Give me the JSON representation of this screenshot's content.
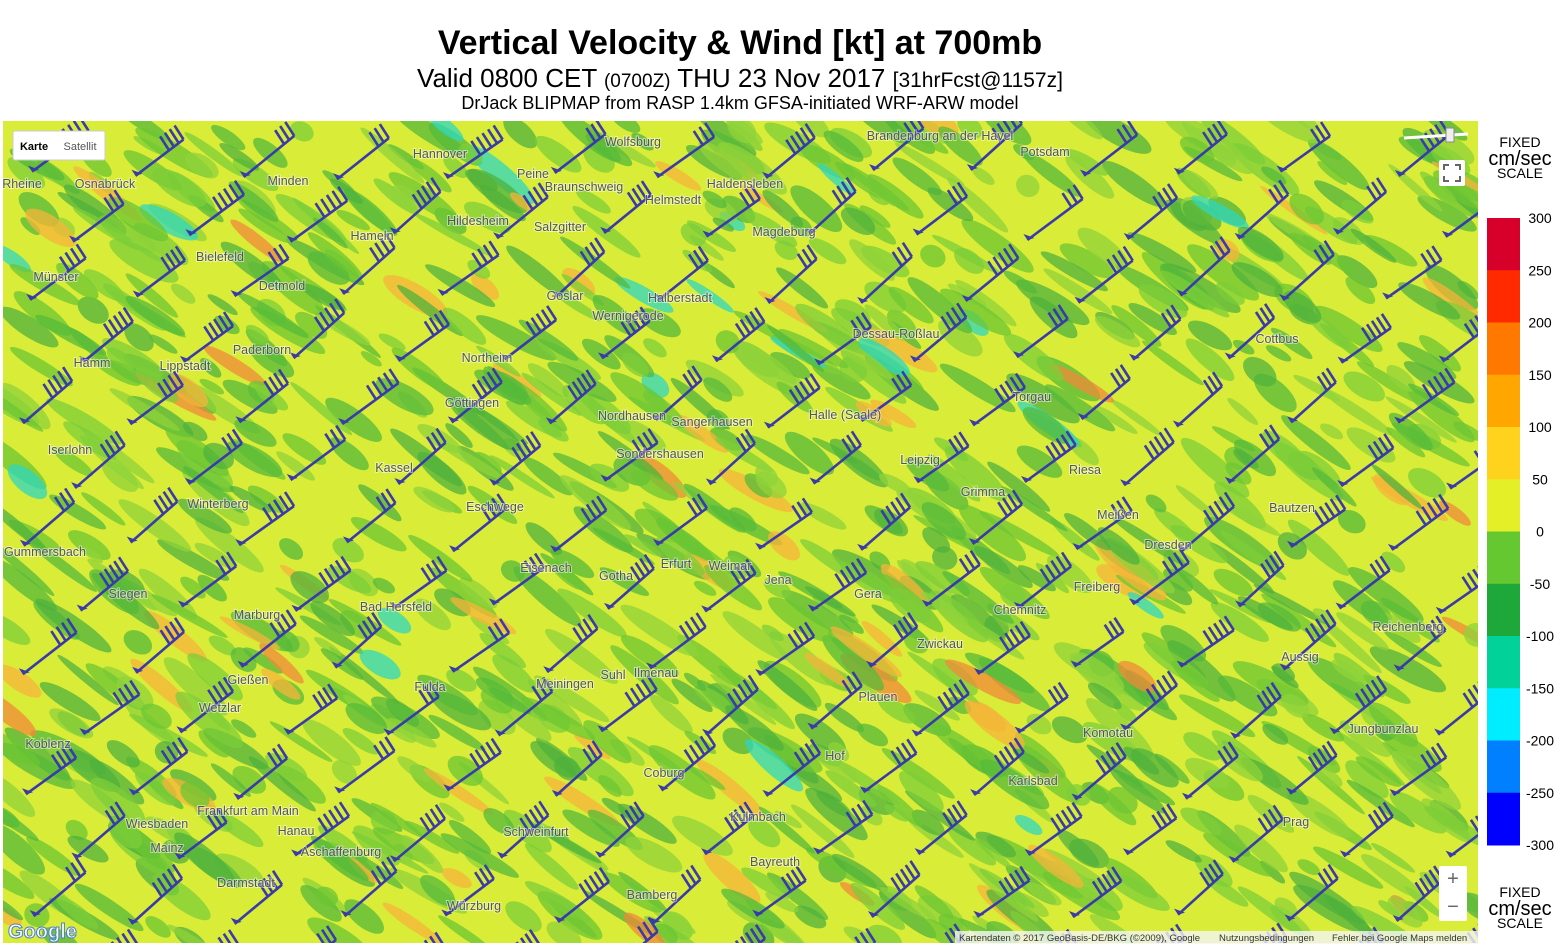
{
  "header": {
    "title": "Vertical Velocity & Wind [kt] at 700mb",
    "valid": [
      "Valid 0800 CET",
      "(0700Z)",
      "THU 23 Nov 2017",
      "[31hrFcst@1157z]"
    ],
    "subtitle": "DrJack BLIPMAP from RASP 1.4km GFSA-initiated WRF-ARW model"
  },
  "map": {
    "controls": [
      "Karte",
      "Satellit"
    ],
    "zoom": [
      "+",
      "−"
    ],
    "logo": "Google",
    "attribution": [
      "Kartendaten © 2017 GeoBasis-DE/BKG (©2009), Google",
      "Nutzungsbedingungen",
      "Fehler bei Google Maps melden"
    ],
    "cities": [
      "Hannover",
      "Wolfsburg",
      "Brandenburg an der Havel",
      "Potsdam",
      "Osnabrück",
      "Minden",
      "Peine",
      "Braunschweig",
      "Haldensleben",
      "Helmstedt",
      "Rheine",
      "Hildesheim",
      "Salzgitter",
      "Magdeburg",
      "Bielefeld",
      "Hameln",
      "Münster",
      "Detmold",
      "Goslar",
      "Halberstadt",
      "Wernigerode",
      "Paderborn",
      "Dessau-Roßlau",
      "Cottbus",
      "Hamm",
      "Lippstadt",
      "Northeim",
      "Göttingen",
      "Nordhausen",
      "Sangerhausen",
      "Halle (Saale)",
      "Leipzig",
      "Torgau",
      "Iserlohn",
      "Kassel",
      "Sondershausen",
      "Riesa",
      "Winterberg",
      "Eschwege",
      "Grimma",
      "Meißen",
      "Bautzen",
      "Gummersbach",
      "Dresden",
      "Eisenach",
      "Gotha",
      "Erfurt",
      "Weimar",
      "Jena",
      "Gera",
      "Siegen",
      "Marburg",
      "Bad Hersfeld",
      "Chemnitz",
      "Freiberg",
      "Reichenberg",
      "Zwickau",
      "Aussig",
      "Gießen",
      "Fulda",
      "Meiningen",
      "Suhl",
      "Ilmenau",
      "Plauen",
      "Komotau",
      "Koblenz",
      "Wetzlar",
      "Hof",
      "Coburg",
      "Karlsbad",
      "Jungbunzlau",
      "Frankfurt am Main",
      "Wiesbaden",
      "Mainz",
      "Hanau",
      "Prag",
      "Schweinfurt",
      "Kulmbach",
      "Bayreuth",
      "Darmstadt",
      "Bamberg",
      "Würzburg",
      "Aschaffenburg"
    ]
  },
  "scale": {
    "top": [
      "FIXED",
      "cm/sec",
      "SCALE"
    ],
    "ticks": [
      300,
      250,
      200,
      150,
      100,
      50,
      0,
      -50,
      -100,
      -150,
      -200,
      -250,
      -300
    ],
    "colors": [
      "#d7002a",
      "#ff2a00",
      "#ff7800",
      "#ffa600",
      "#ffd21e",
      "#e4ef28",
      "#66c830",
      "#1fa83a",
      "#00d29a",
      "#00ecff",
      "#0080ff",
      "#0000ff"
    ]
  }
}
